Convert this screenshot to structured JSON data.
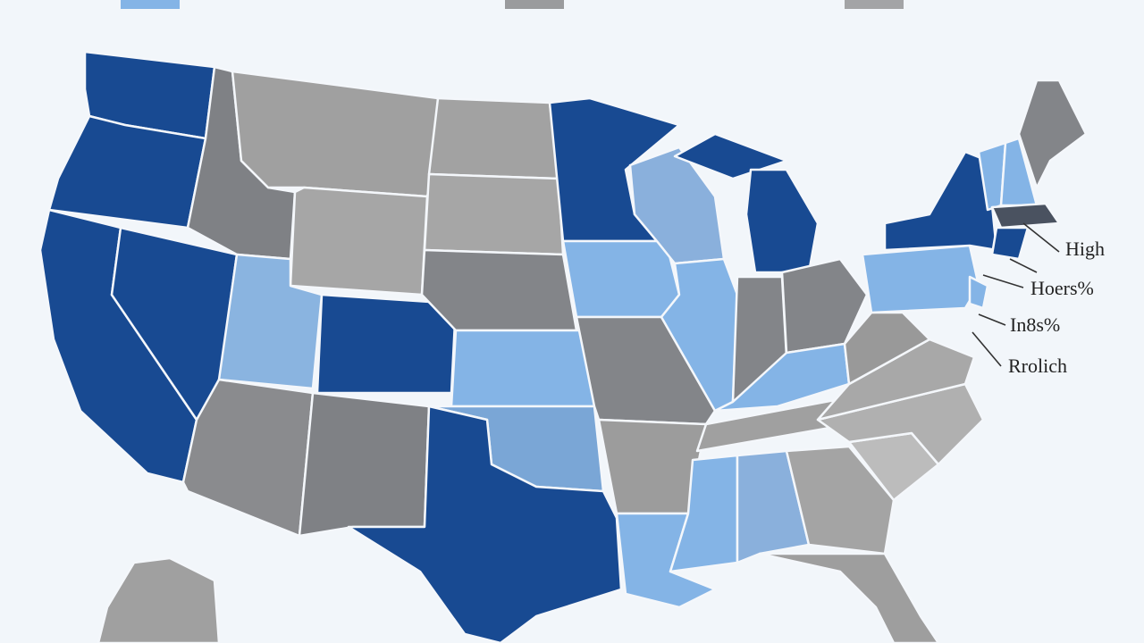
{
  "annotations": [
    {
      "label": "High"
    },
    {
      "label": "Hoers%"
    },
    {
      "label": "In8s%"
    },
    {
      "label": "Rrolich"
    }
  ]
}
